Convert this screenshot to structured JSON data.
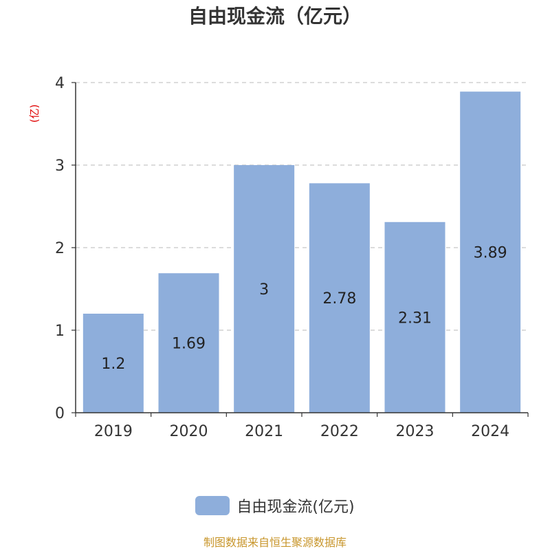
{
  "chart_data": {
    "type": "bar",
    "title": "自由现金流（亿元）",
    "ylabel": "(亿)",
    "categories": [
      "2019",
      "2020",
      "2021",
      "2022",
      "2023",
      "2024"
    ],
    "series": [
      {
        "name": "自由现金流(亿元)",
        "values": [
          1.2,
          1.69,
          3,
          2.78,
          2.31,
          3.89
        ]
      }
    ],
    "data_labels": [
      "1.2",
      "1.69",
      "3",
      "2.78",
      "2.31",
      "3.89"
    ],
    "y_ticks": [
      "0",
      "1",
      "2",
      "3",
      "4"
    ],
    "ylim": [
      0,
      4
    ],
    "grid": true,
    "legend_position": "bottom-center",
    "colors": {
      "bar": "#8eaedb",
      "title": "#333333",
      "axis_unit": "#e00000",
      "source": "#c8962c"
    }
  },
  "footer": {
    "source": "制图数据来自恒生聚源数据库"
  }
}
